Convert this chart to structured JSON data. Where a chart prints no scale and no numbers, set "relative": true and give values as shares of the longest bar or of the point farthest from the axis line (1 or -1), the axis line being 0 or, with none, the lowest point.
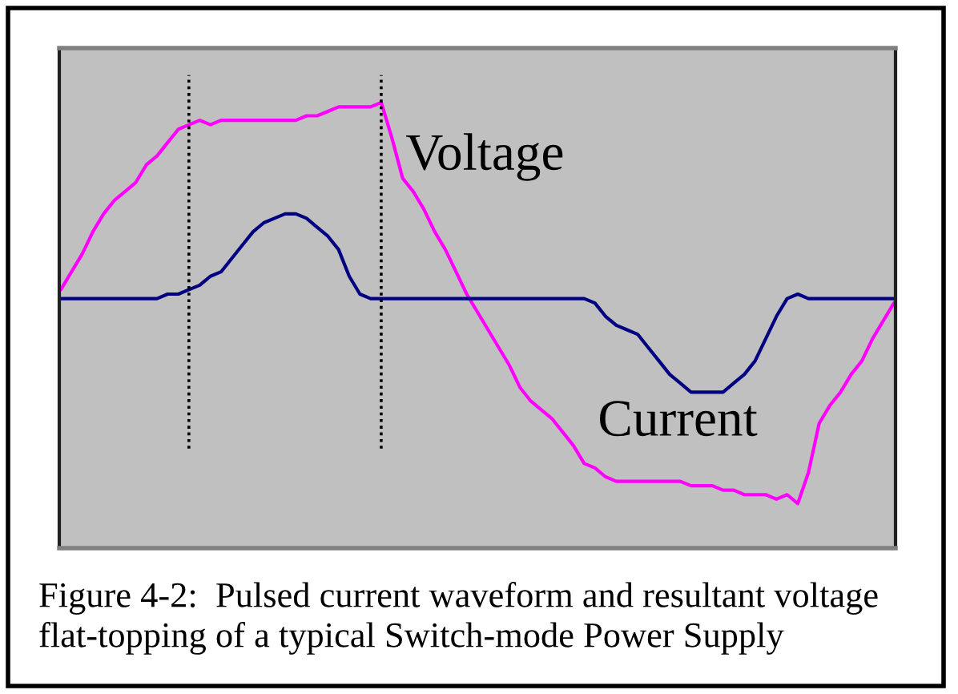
{
  "chart_data": {
    "type": "line",
    "relative": true,
    "line_style": "solid",
    "categories": [
      null,
      null,
      null,
      null,
      null,
      null,
      null,
      null,
      null,
      null,
      null,
      null,
      null,
      null,
      null,
      null,
      null,
      null,
      null,
      null,
      null,
      null,
      null,
      null,
      null,
      null,
      null,
      null,
      null,
      null,
      null,
      null,
      null,
      null,
      null,
      null,
      null,
      null,
      null,
      null,
      null,
      null,
      null,
      null,
      null,
      null,
      null,
      null,
      null,
      null,
      null,
      null,
      null,
      null,
      null,
      null,
      null,
      null,
      null,
      null,
      null,
      null,
      null,
      null,
      null,
      null,
      null,
      null,
      null,
      null,
      null,
      null,
      null,
      null,
      null,
      null,
      null,
      null,
      null
    ],
    "series": [
      {
        "name": "Voltage",
        "color": "#ff00ff",
        "values": [
          0.58,
          0.62,
          0.66,
          0.71,
          0.75,
          0.78,
          0.8,
          0.82,
          0.86,
          0.88,
          0.91,
          0.94,
          0.95,
          0.96,
          0.95,
          0.96,
          0.96,
          0.96,
          0.96,
          0.96,
          0.96,
          0.96,
          0.96,
          0.97,
          0.97,
          0.98,
          0.99,
          0.99,
          0.99,
          0.99,
          1,
          0.92,
          0.83,
          0.8,
          0.76,
          0.71,
          0.67,
          0.62,
          0.57,
          0.53,
          0.49,
          0.45,
          0.41,
          0.36,
          0.33,
          0.31,
          0.29,
          0.26,
          0.23,
          0.19,
          0.18,
          0.16,
          0.15,
          0.15,
          0.15,
          0.15,
          0.15,
          0.15,
          0.15,
          0.14,
          0.14,
          0.14,
          0.13,
          0.13,
          0.12,
          0.12,
          0.12,
          0.11,
          0.12,
          0.1,
          0.17,
          0.28,
          0.32,
          0.35,
          0.39,
          0.42,
          0.47,
          0.51,
          0.55
        ]
      },
      {
        "name": "Current",
        "color": "#000080",
        "values": [
          0.56,
          0.56,
          0.56,
          0.56,
          0.56,
          0.56,
          0.56,
          0.56,
          0.56,
          0.56,
          0.57,
          0.57,
          0.58,
          0.59,
          0.61,
          0.62,
          0.65,
          0.68,
          0.71,
          0.73,
          0.74,
          0.75,
          0.75,
          0.74,
          0.72,
          0.7,
          0.67,
          0.61,
          0.57,
          0.56,
          0.56,
          0.56,
          0.56,
          0.56,
          0.56,
          0.56,
          0.56,
          0.56,
          0.56,
          0.56,
          0.56,
          0.56,
          0.56,
          0.56,
          0.56,
          0.56,
          0.56,
          0.56,
          0.56,
          0.56,
          0.55,
          0.52,
          0.5,
          0.49,
          0.48,
          0.45,
          0.42,
          0.39,
          0.37,
          0.35,
          0.35,
          0.35,
          0.35,
          0.37,
          0.39,
          0.42,
          0.47,
          0.52,
          0.56,
          0.57,
          0.56,
          0.56,
          0.56,
          0.56,
          0.56,
          0.56,
          0.56,
          0.56,
          0.56
        ]
      }
    ],
    "annotations": [
      "Figure 4-2:  Pulsed current waveform and resultant voltage flat-topping of a typical Switch-mode Power Supply"
    ]
  }
}
